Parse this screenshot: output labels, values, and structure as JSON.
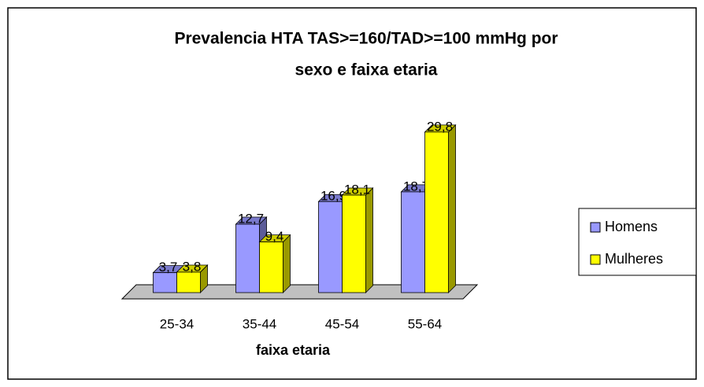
{
  "chart_data": {
    "type": "bar",
    "title": [
      "Prevalencia HTA TAS>=160/TAD>=100 mmHg por",
      "sexo e faixa etaria"
    ],
    "x_label": "faixa etaria",
    "categories": [
      "25-34",
      "35-44",
      "45-54",
      "55-64"
    ],
    "series": [
      {
        "name": "Homens",
        "color": "#9999ff",
        "values": [
          3.7,
          12.7,
          16.9,
          18.7
        ],
        "value_labels": [
          "3,7",
          "12,7",
          "16,9",
          "18,7"
        ]
      },
      {
        "name": "Mulheres",
        "color": "#ffff00",
        "values": [
          3.8,
          9.4,
          18.1,
          29.8
        ],
        "value_labels": [
          "3,8",
          "9,4",
          "18,1",
          "29,8"
        ]
      }
    ],
    "legend": "right"
  }
}
